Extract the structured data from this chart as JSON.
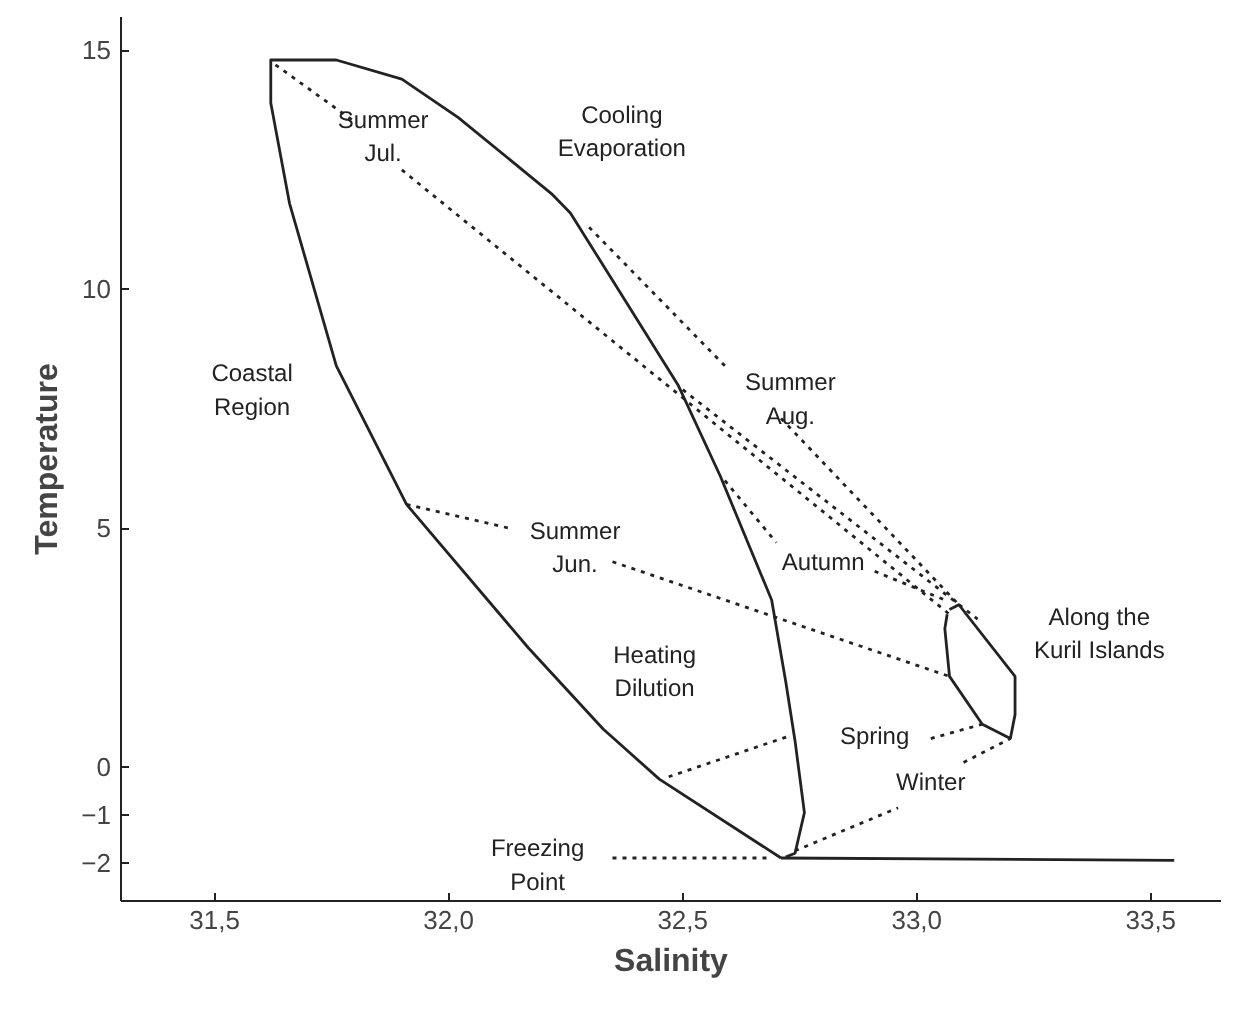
{
  "chart_data": {
    "type": "line",
    "xlabel": "Salinity",
    "ylabel": "Temperature",
    "xlim": [
      31.3,
      33.65
    ],
    "ylim": [
      -2.8,
      15.7
    ],
    "xticks": [
      {
        "value": 31.5,
        "label": "31,5"
      },
      {
        "value": 32.0,
        "label": "32,0"
      },
      {
        "value": 32.5,
        "label": "32,5"
      },
      {
        "value": 33.0,
        "label": "33,0"
      },
      {
        "value": 33.5,
        "label": "33,5"
      }
    ],
    "yticks": [
      -2,
      -1,
      0,
      5,
      10,
      15
    ],
    "grid": false,
    "marker": "none",
    "series": [
      {
        "color": "#222222",
        "line_style": "solid",
        "x": [
          32.71,
          32.45,
          32.33,
          32.17,
          31.91,
          31.76,
          31.66,
          31.62,
          31.62,
          31.76,
          31.9,
          32.02,
          32.22,
          32.26,
          32.49,
          32.58,
          32.69,
          32.72,
          32.74,
          32.76,
          32.74,
          32.72
        ],
        "values": [
          -1.9,
          -0.25,
          0.8,
          2.5,
          5.5,
          8.4,
          11.8,
          13.9,
          14.8,
          14.8,
          14.4,
          13.6,
          12.0,
          11.6,
          8.0,
          6.1,
          3.5,
          1.8,
          0.55,
          -0.95,
          -1.8,
          -1.88
        ]
      },
      {
        "color": "#222222",
        "line_style": "solid",
        "x": [
          32.71,
          33.55
        ],
        "values": [
          -1.9,
          -1.95
        ]
      },
      {
        "color": "#222222",
        "line_style": "solid",
        "x": [
          33.07,
          33.09,
          33.21,
          33.21,
          33.2,
          33.14,
          33.07,
          33.06,
          33.065
        ],
        "values": [
          3.3,
          3.4,
          1.9,
          1.1,
          0.6,
          0.9,
          1.9,
          2.9,
          3.2
        ]
      },
      {
        "color": "#222222",
        "line_style": "dotted",
        "x": [
          31.63,
          31.8
        ],
        "values": [
          14.7,
          13.5
        ]
      },
      {
        "color": "#222222",
        "line_style": "dotted",
        "x": [
          31.9,
          33.07
        ],
        "values": [
          12.5,
          3.2
        ]
      },
      {
        "color": "#222222",
        "line_style": "dotted",
        "x": [
          32.3,
          32.59
        ],
        "values": [
          11.3,
          8.4
        ]
      },
      {
        "color": "#222222",
        "line_style": "dotted",
        "x": [
          32.71,
          33.09
        ],
        "values": [
          7.3,
          3.4
        ]
      },
      {
        "color": "#222222",
        "line_style": "dotted",
        "x": [
          32.5,
          33.13
        ],
        "values": [
          7.9,
          3.1
        ]
      },
      {
        "color": "#222222",
        "line_style": "dotted",
        "x": [
          32.59,
          32.7
        ],
        "values": [
          6.0,
          4.7
        ]
      },
      {
        "color": "#222222",
        "line_style": "dotted",
        "x": [
          32.91,
          33.06
        ],
        "values": [
          4.1,
          3.5
        ]
      },
      {
        "color": "#222222",
        "line_style": "dotted",
        "x": [
          31.91,
          32.13
        ],
        "values": [
          5.5,
          5.0
        ]
      },
      {
        "color": "#222222",
        "line_style": "dotted",
        "x": [
          32.35,
          33.07
        ],
        "values": [
          4.3,
          1.9
        ]
      },
      {
        "color": "#222222",
        "line_style": "dotted",
        "x": [
          32.47,
          32.73
        ],
        "values": [
          -0.2,
          0.66
        ]
      },
      {
        "color": "#222222",
        "line_style": "dotted",
        "x": [
          33.03,
          33.14
        ],
        "values": [
          0.6,
          0.9
        ]
      },
      {
        "color": "#222222",
        "line_style": "dotted",
        "x": [
          32.74,
          32.96
        ],
        "values": [
          -1.75,
          -0.85
        ]
      },
      {
        "color": "#222222",
        "line_style": "dotted",
        "x": [
          33.1,
          33.2
        ],
        "values": [
          0.1,
          0.6
        ]
      },
      {
        "color": "#222222",
        "line_style": "dotted",
        "x": [
          32.35,
          32.68
        ],
        "values": [
          -1.9,
          -1.9
        ]
      }
    ],
    "annotations": [
      "Summer\nJul.",
      "Cooling\nEvaporation",
      "Coastal\nRegion",
      "Summer\nAug.",
      "Summer\nJun.",
      "Autumn",
      "Along the\nKuril Islands",
      "Heating\nDilution",
      "Spring",
      "Winter",
      "Freezing\nPoint"
    ]
  }
}
